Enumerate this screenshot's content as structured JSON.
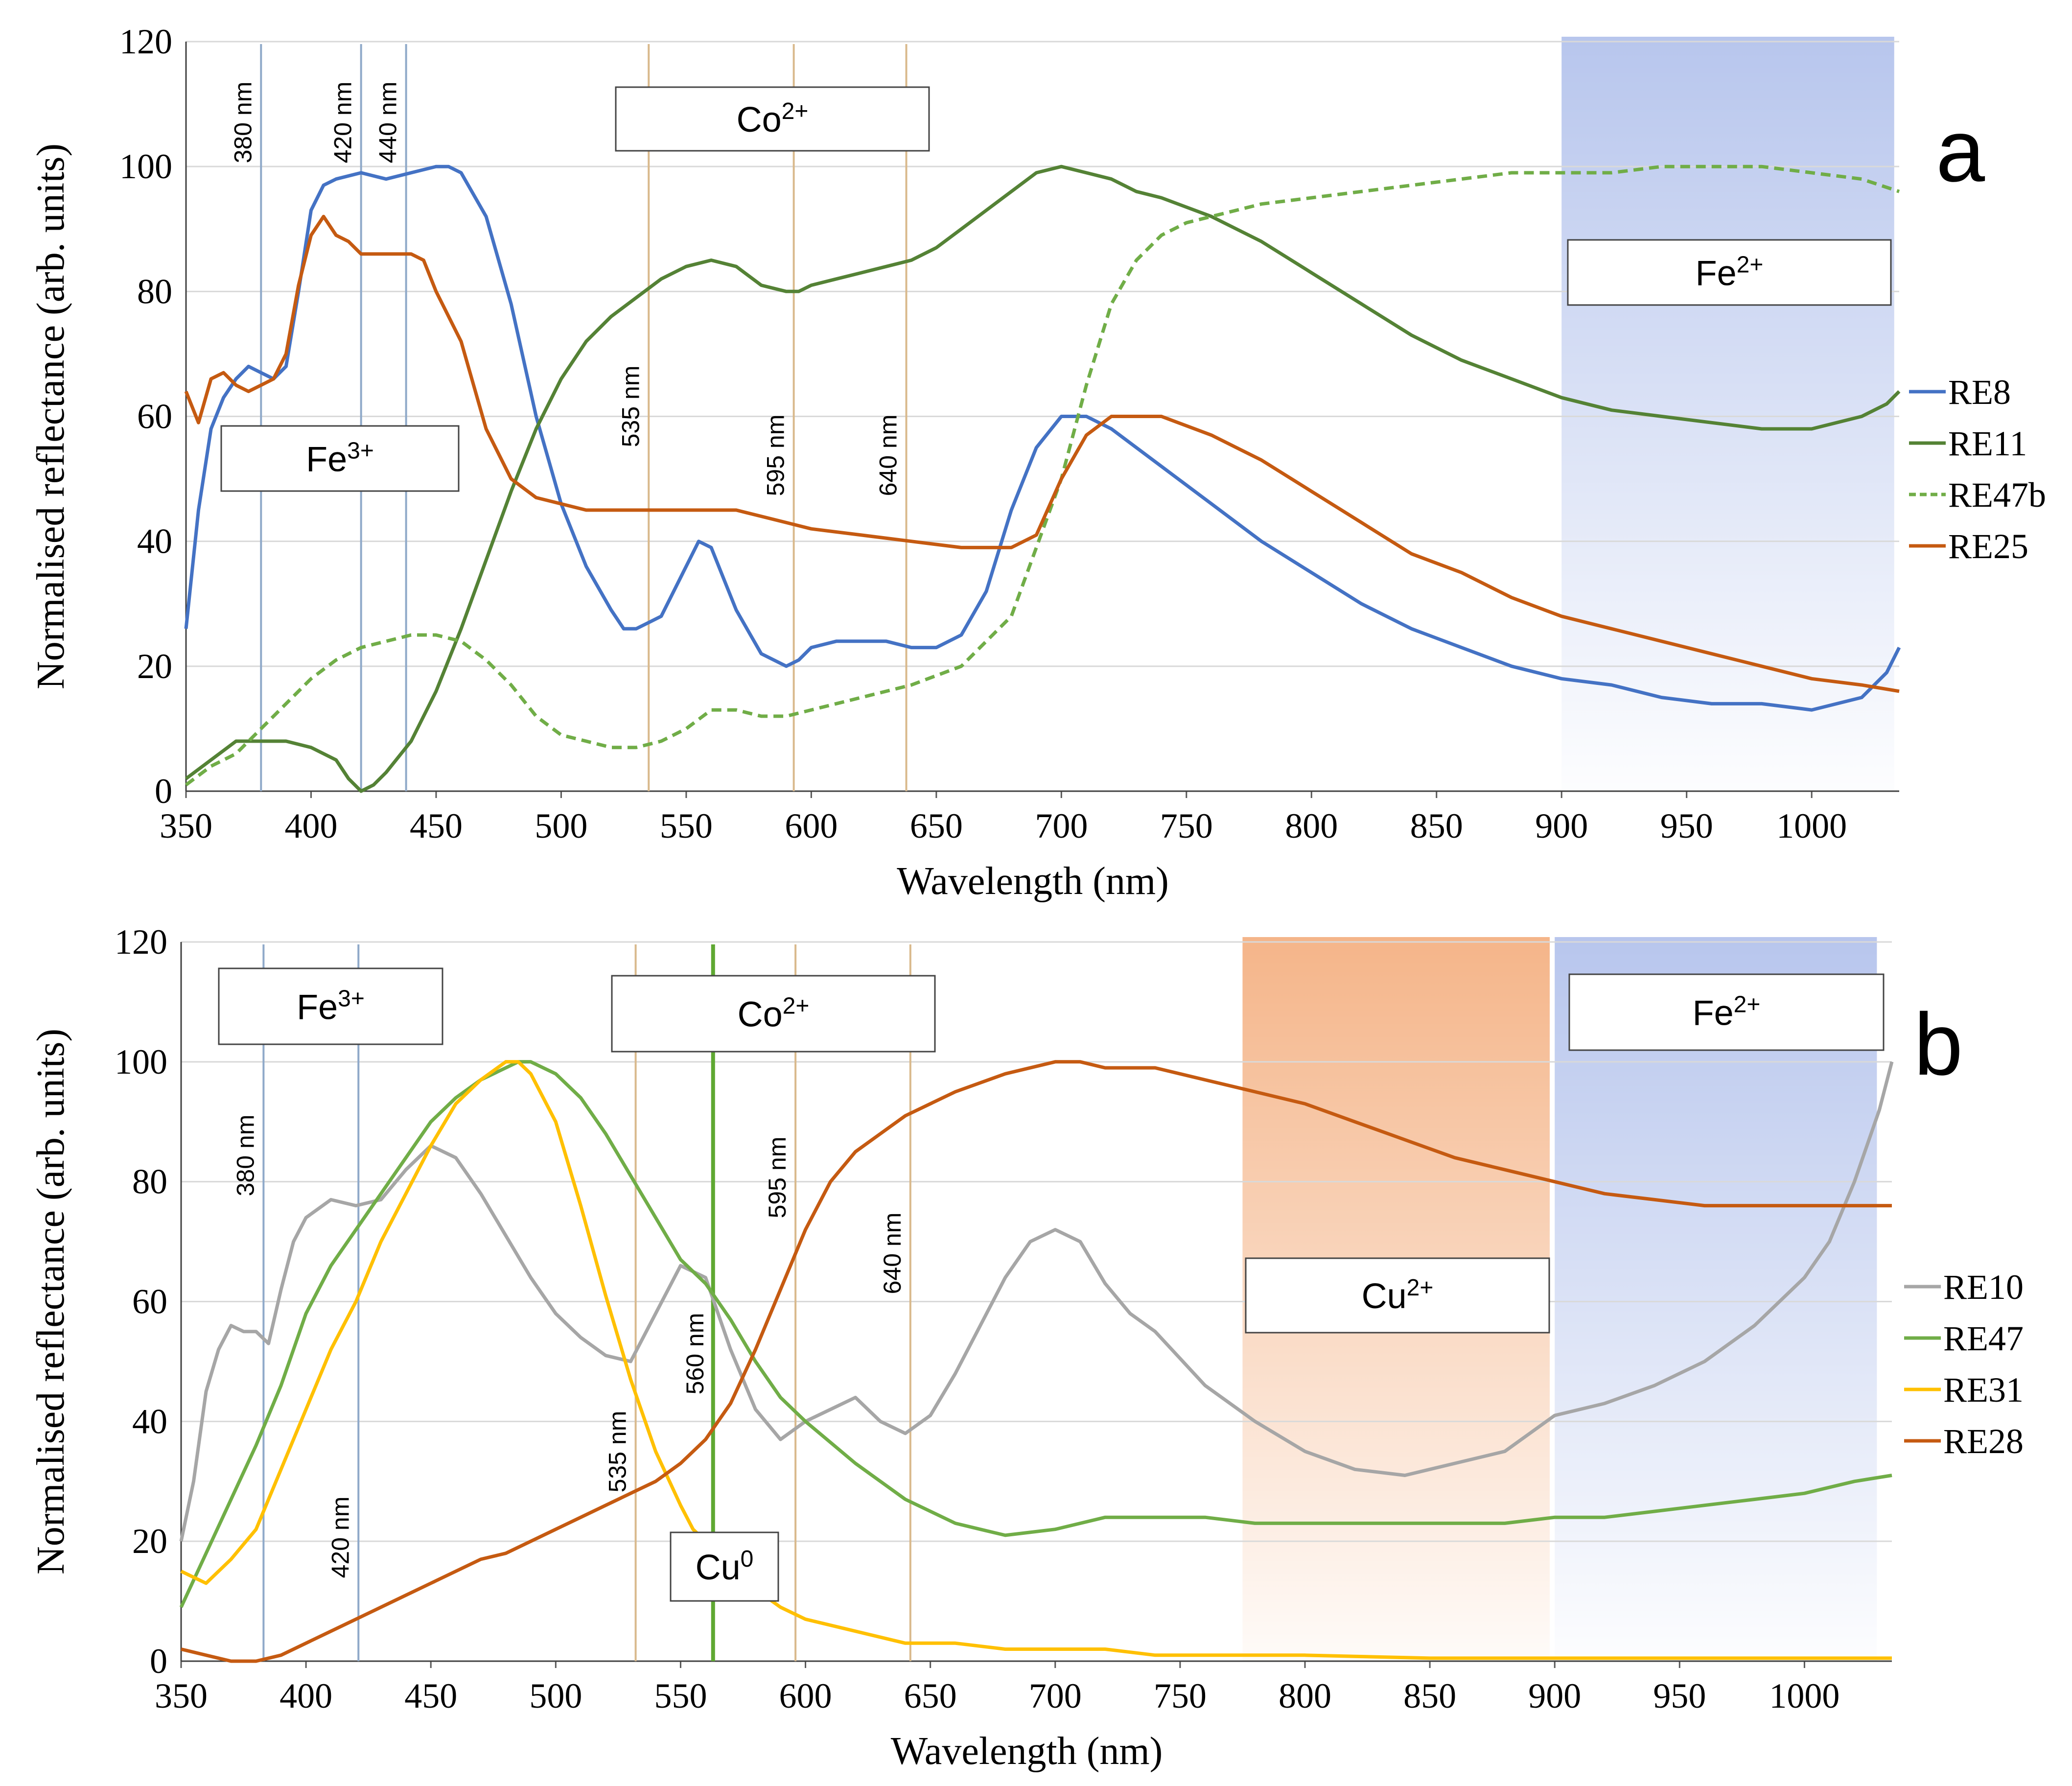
{
  "chart_data": [
    {
      "panel": "a",
      "type": "line",
      "xlabel": "Wavelength (nm)",
      "ylabel": "Normalised reflectance (arb. units)",
      "xlim": [
        350,
        1035
      ],
      "ylim": [
        0,
        120
      ],
      "xticks": [
        "350",
        "400",
        "450",
        "500",
        "550",
        "600",
        "650",
        "700",
        "750",
        "800",
        "850",
        "900",
        "950",
        "1000"
      ],
      "yticks": [
        "0",
        "20",
        "40",
        "60",
        "80",
        "100",
        "120"
      ],
      "grid": "horizontal",
      "legend_position": "right",
      "wavelength_lines": [
        {
          "wl": 380,
          "label": "380 nm",
          "color": "#8fa9c9"
        },
        {
          "wl": 420,
          "label": "420 nm",
          "color": "#8fa9c9"
        },
        {
          "wl": 438,
          "label": "440 nm",
          "color": "#8fa9c9"
        },
        {
          "wl": 535,
          "label": "535 nm",
          "color": "#d9b98c"
        },
        {
          "wl": 593,
          "label": "595 nm",
          "color": "#d9b98c"
        },
        {
          "wl": 638,
          "label": "640 nm",
          "color": "#d9b98c"
        }
      ],
      "bands": [
        {
          "from": 900,
          "to": 1033,
          "color": "#b4c3ec"
        }
      ],
      "ion_labels": [
        {
          "text": "Co",
          "sup": "2+"
        },
        {
          "text": "Fe",
          "sup": "3+"
        },
        {
          "text": "Fe",
          "sup": "2+"
        }
      ],
      "panel_letter": "a",
      "series": [
        {
          "name": "RE8",
          "color": "#4472c4",
          "dash": false,
          "x": [
            350,
            355,
            360,
            365,
            370,
            375,
            380,
            385,
            390,
            395,
            400,
            405,
            410,
            420,
            430,
            440,
            450,
            455,
            460,
            470,
            480,
            490,
            500,
            510,
            520,
            525,
            530,
            540,
            550,
            555,
            560,
            565,
            570,
            580,
            590,
            595,
            600,
            610,
            620,
            630,
            640,
            650,
            660,
            670,
            680,
            690,
            700,
            710,
            720,
            730,
            740,
            750,
            760,
            780,
            800,
            820,
            840,
            860,
            880,
            900,
            920,
            940,
            960,
            980,
            1000,
            1010,
            1020,
            1030,
            1035
          ],
          "y": [
            26,
            45,
            58,
            63,
            66,
            68,
            67,
            66,
            68,
            80,
            93,
            97,
            98,
            99,
            98,
            99,
            100,
            100,
            99,
            92,
            78,
            60,
            46,
            36,
            29,
            26,
            26,
            28,
            36,
            40,
            39,
            34,
            29,
            22,
            20,
            21,
            23,
            24,
            24,
            24,
            23,
            23,
            25,
            32,
            45,
            55,
            60,
            60,
            58,
            55,
            52,
            49,
            46,
            40,
            35,
            30,
            26,
            23,
            20,
            18,
            17,
            15,
            14,
            14,
            13,
            14,
            15,
            19,
            23
          ]
        },
        {
          "name": "RE11",
          "color": "#548235",
          "dash": false,
          "x": [
            350,
            360,
            370,
            380,
            390,
            400,
            410,
            415,
            420,
            425,
            430,
            440,
            450,
            460,
            470,
            480,
            490,
            500,
            510,
            520,
            530,
            540,
            550,
            560,
            570,
            580,
            590,
            595,
            600,
            610,
            620,
            630,
            640,
            650,
            660,
            670,
            680,
            690,
            700,
            710,
            720,
            730,
            740,
            760,
            780,
            800,
            820,
            840,
            860,
            880,
            900,
            920,
            940,
            960,
            980,
            1000,
            1020,
            1030,
            1035
          ],
          "y": [
            2,
            5,
            8,
            8,
            8,
            7,
            5,
            2,
            0,
            1,
            3,
            8,
            16,
            26,
            37,
            48,
            58,
            66,
            72,
            76,
            79,
            82,
            84,
            85,
            84,
            81,
            80,
            80,
            81,
            82,
            83,
            84,
            85,
            87,
            90,
            93,
            96,
            99,
            100,
            99,
            98,
            96,
            95,
            92,
            88,
            83,
            78,
            73,
            69,
            66,
            63,
            61,
            60,
            59,
            58,
            58,
            60,
            62,
            64
          ]
        },
        {
          "name": "RE47b",
          "color": "#70ad47",
          "dash": true,
          "x": [
            350,
            360,
            370,
            380,
            390,
            400,
            410,
            420,
            430,
            440,
            450,
            460,
            470,
            480,
            490,
            500,
            510,
            520,
            530,
            540,
            550,
            560,
            570,
            580,
            590,
            600,
            620,
            640,
            660,
            680,
            700,
            710,
            720,
            730,
            740,
            750,
            760,
            780,
            800,
            820,
            840,
            860,
            880,
            900,
            920,
            940,
            960,
            980,
            1000,
            1020,
            1035
          ],
          "y": [
            1,
            4,
            6,
            10,
            14,
            18,
            21,
            23,
            24,
            25,
            25,
            24,
            21,
            17,
            12,
            9,
            8,
            7,
            7,
            8,
            10,
            13,
            13,
            12,
            12,
            13,
            15,
            17,
            20,
            28,
            50,
            65,
            78,
            85,
            89,
            91,
            92,
            94,
            95,
            96,
            97,
            98,
            99,
            99,
            99,
            100,
            100,
            100,
            99,
            98,
            96
          ]
        },
        {
          "name": "RE25",
          "color": "#c55a11",
          "dash": false,
          "x": [
            350,
            355,
            360,
            365,
            370,
            375,
            380,
            385,
            390,
            395,
            400,
            405,
            410,
            415,
            420,
            430,
            440,
            445,
            450,
            460,
            470,
            480,
            490,
            500,
            510,
            520,
            530,
            540,
            550,
            560,
            570,
            580,
            590,
            600,
            620,
            640,
            660,
            680,
            690,
            700,
            710,
            720,
            730,
            740,
            760,
            780,
            800,
            820,
            840,
            860,
            880,
            900,
            920,
            940,
            960,
            980,
            1000,
            1020,
            1035
          ],
          "y": [
            64,
            59,
            66,
            67,
            65,
            64,
            65,
            66,
            70,
            81,
            89,
            92,
            89,
            88,
            86,
            86,
            86,
            85,
            80,
            72,
            58,
            50,
            47,
            46,
            45,
            45,
            45,
            45,
            45,
            45,
            45,
            44,
            43,
            42,
            41,
            40,
            39,
            39,
            41,
            50,
            57,
            60,
            60,
            60,
            57,
            53,
            48,
            43,
            38,
            35,
            31,
            28,
            26,
            24,
            22,
            20,
            18,
            17,
            16
          ]
        }
      ]
    },
    {
      "panel": "b",
      "type": "line",
      "xlabel": "Wavelength (nm)",
      "ylabel": "Normalised reflectance (arb. units)",
      "xlim": [
        350,
        1035
      ],
      "ylim": [
        0,
        120
      ],
      "xticks": [
        "350",
        "400",
        "450",
        "500",
        "550",
        "600",
        "650",
        "700",
        "750",
        "800",
        "850",
        "900",
        "950",
        "1000"
      ],
      "yticks": [
        "0",
        "20",
        "40",
        "60",
        "80",
        "100",
        "120"
      ],
      "grid": "horizontal",
      "legend_position": "right",
      "wavelength_lines": [
        {
          "wl": 383,
          "label": "380 nm",
          "color": "#8fa9c9"
        },
        {
          "wl": 421,
          "label": "420 nm",
          "color": "#8fa9c9"
        },
        {
          "wl": 532,
          "label": "535 nm",
          "color": "#d9b98c"
        },
        {
          "wl": 563,
          "label": "560 nm",
          "color": "#5fa832"
        },
        {
          "wl": 596,
          "label": "595 nm",
          "color": "#d9b98c"
        },
        {
          "wl": 642,
          "label": "640 nm",
          "color": "#d9b98c"
        }
      ],
      "bands": [
        {
          "from": 775,
          "to": 898,
          "color": "#f4b183"
        },
        {
          "from": 900,
          "to": 1029,
          "color": "#b4c3ec"
        }
      ],
      "ion_labels": [
        {
          "text": "Fe",
          "sup": "3+"
        },
        {
          "text": "Co",
          "sup": "2+"
        },
        {
          "text": "Fe",
          "sup": "2+"
        },
        {
          "text": "Cu",
          "sup": "2+"
        },
        {
          "text": "Cu",
          "sup": "0"
        }
      ],
      "panel_letter": "b",
      "series": [
        {
          "name": "RE10",
          "color": "#a6a6a6",
          "dash": false,
          "x": [
            350,
            355,
            360,
            365,
            370,
            375,
            380,
            385,
            390,
            395,
            400,
            410,
            420,
            430,
            440,
            450,
            460,
            470,
            480,
            490,
            500,
            510,
            520,
            530,
            540,
            550,
            560,
            570,
            580,
            590,
            600,
            610,
            620,
            630,
            640,
            650,
            660,
            670,
            680,
            690,
            700,
            710,
            720,
            730,
            740,
            760,
            780,
            800,
            820,
            840,
            860,
            880,
            890,
            900,
            920,
            940,
            960,
            980,
            1000,
            1010,
            1020,
            1030,
            1035
          ],
          "y": [
            20,
            30,
            45,
            52,
            56,
            55,
            55,
            53,
            62,
            70,
            74,
            77,
            76,
            77,
            82,
            86,
            84,
            78,
            71,
            64,
            58,
            54,
            51,
            50,
            58,
            66,
            64,
            52,
            42,
            37,
            40,
            42,
            44,
            40,
            38,
            41,
            48,
            56,
            64,
            70,
            72,
            70,
            63,
            58,
            55,
            46,
            40,
            35,
            32,
            31,
            33,
            35,
            38,
            41,
            43,
            46,
            50,
            56,
            64,
            70,
            80,
            92,
            100
          ]
        },
        {
          "name": "RE47",
          "color": "#70ad47",
          "dash": false,
          "x": [
            350,
            360,
            370,
            380,
            390,
            400,
            410,
            420,
            430,
            440,
            450,
            460,
            470,
            480,
            485,
            490,
            500,
            510,
            520,
            530,
            540,
            550,
            560,
            570,
            580,
            590,
            600,
            620,
            640,
            660,
            670,
            680,
            700,
            720,
            740,
            760,
            780,
            800,
            820,
            840,
            860,
            880,
            900,
            920,
            940,
            960,
            980,
            1000,
            1020,
            1035
          ],
          "y": [
            9,
            18,
            27,
            36,
            46,
            58,
            66,
            72,
            78,
            84,
            90,
            94,
            97,
            99,
            100,
            100,
            98,
            94,
            88,
            81,
            74,
            67,
            63,
            57,
            50,
            44,
            40,
            33,
            27,
            23,
            22,
            21,
            22,
            24,
            24,
            24,
            23,
            23,
            23,
            23,
            23,
            23,
            24,
            24,
            25,
            26,
            27,
            28,
            30,
            31
          ]
        },
        {
          "name": "RE31",
          "color": "#ffc000",
          "dash": false,
          "x": [
            350,
            360,
            370,
            380,
            390,
            400,
            410,
            420,
            430,
            440,
            450,
            460,
            470,
            480,
            485,
            490,
            500,
            510,
            520,
            530,
            540,
            550,
            555,
            560,
            570,
            580,
            590,
            600,
            620,
            640,
            660,
            680,
            700,
            720,
            740,
            760,
            780,
            800,
            850,
            900,
            950,
            1000,
            1035
          ],
          "y": [
            15,
            13,
            17,
            22,
            32,
            42,
            52,
            60,
            70,
            78,
            86,
            93,
            97,
            100,
            100,
            98,
            90,
            76,
            61,
            47,
            35,
            26,
            22,
            20,
            15,
            12,
            9,
            7,
            5,
            3,
            3,
            2,
            2,
            2,
            1,
            1,
            1,
            1,
            0.5,
            0.5,
            0.5,
            0.5,
            0.5
          ]
        },
        {
          "name": "RE28",
          "color": "#c55a11",
          "dash": false,
          "x": [
            350,
            360,
            370,
            380,
            390,
            400,
            410,
            420,
            430,
            440,
            450,
            460,
            470,
            480,
            490,
            500,
            510,
            520,
            530,
            540,
            550,
            560,
            570,
            580,
            590,
            600,
            610,
            620,
            630,
            640,
            660,
            680,
            700,
            710,
            720,
            740,
            760,
            780,
            800,
            820,
            840,
            860,
            880,
            900,
            920,
            940,
            960,
            980,
            1000,
            1020,
            1035
          ],
          "y": [
            2,
            1,
            0,
            0,
            1,
            3,
            5,
            7,
            9,
            11,
            13,
            15,
            17,
            18,
            20,
            22,
            24,
            26,
            28,
            30,
            33,
            37,
            43,
            52,
            62,
            72,
            80,
            85,
            88,
            91,
            95,
            98,
            100,
            100,
            99,
            99,
            97,
            95,
            93,
            90,
            87,
            84,
            82,
            80,
            78,
            77,
            76,
            76,
            76,
            76,
            76
          ]
        }
      ]
    }
  ]
}
